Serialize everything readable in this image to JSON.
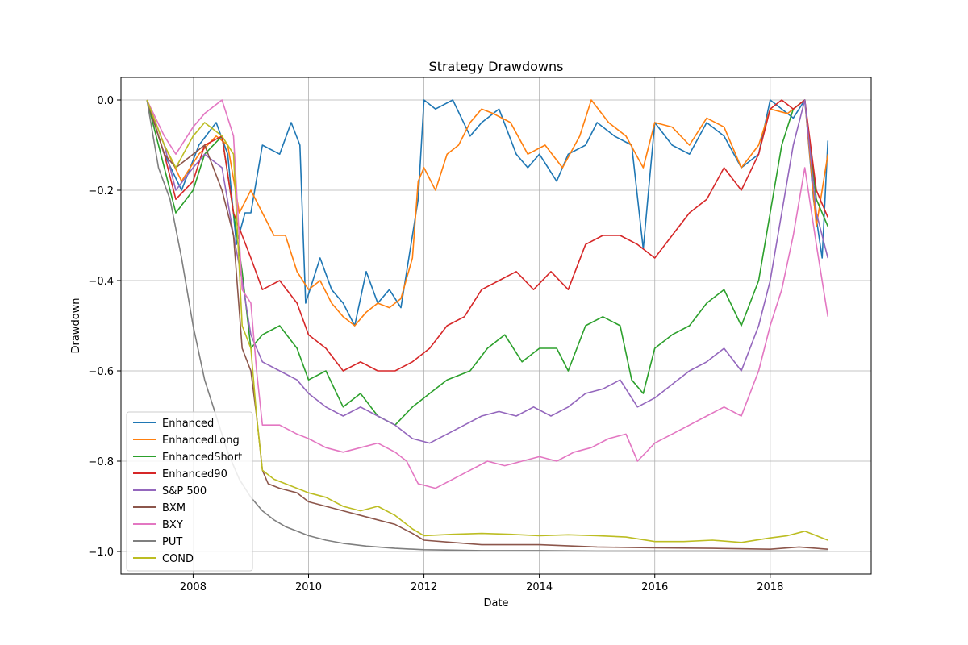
{
  "chart_data": {
    "type": "line",
    "title": "Strategy Drawdowns",
    "xlabel": "Date",
    "ylabel": "Drawdown",
    "xlim": [
      2006.75,
      2019.75
    ],
    "ylim": [
      -1.05,
      0.05
    ],
    "xticks": [
      2008,
      2010,
      2012,
      2014,
      2016,
      2018
    ],
    "xtick_labels": [
      "2008",
      "2010",
      "2012",
      "2014",
      "2016",
      "2018"
    ],
    "yticks": [
      0.0,
      -0.2,
      -0.4,
      -0.6,
      -0.8,
      -1.0
    ],
    "ytick_labels": [
      "0.0",
      "−0.2",
      "−0.4",
      "−0.6",
      "−0.8",
      "−1.0"
    ],
    "grid": true,
    "legend_position": "lower-left",
    "series": [
      {
        "name": "Enhanced",
        "color": "#1f77b4",
        "x": [
          2007.2,
          2007.5,
          2007.8,
          2008.1,
          2008.4,
          2008.6,
          2008.75,
          2008.9,
          2009.0,
          2009.2,
          2009.5,
          2009.7,
          2009.85,
          2009.95,
          2010.2,
          2010.4,
          2010.6,
          2010.8,
          2011.0,
          2011.2,
          2011.4,
          2011.6,
          2011.8,
          2011.9,
          2012.0,
          2012.2,
          2012.5,
          2012.8,
          2013.0,
          2013.3,
          2013.6,
          2013.8,
          2014.0,
          2014.3,
          2014.5,
          2014.8,
          2015.0,
          2015.3,
          2015.6,
          2015.8,
          2016.0,
          2016.3,
          2016.6,
          2016.9,
          2017.2,
          2017.5,
          2017.8,
          2018.0,
          2018.2,
          2018.4,
          2018.6,
          2018.75,
          2018.9,
          2019.0
        ],
        "y": [
          0.0,
          -0.12,
          -0.2,
          -0.1,
          -0.05,
          -0.12,
          -0.32,
          -0.25,
          -0.25,
          -0.1,
          -0.12,
          -0.05,
          -0.1,
          -0.45,
          -0.35,
          -0.42,
          -0.45,
          -0.5,
          -0.38,
          -0.45,
          -0.42,
          -0.46,
          -0.3,
          -0.22,
          0.0,
          -0.02,
          0.0,
          -0.08,
          -0.05,
          -0.02,
          -0.12,
          -0.15,
          -0.12,
          -0.18,
          -0.12,
          -0.1,
          -0.05,
          -0.08,
          -0.1,
          -0.33,
          -0.05,
          -0.1,
          -0.12,
          -0.05,
          -0.08,
          -0.15,
          -0.12,
          0.0,
          -0.02,
          -0.04,
          0.0,
          -0.22,
          -0.35,
          -0.09
        ]
      },
      {
        "name": "EnhancedLong",
        "color": "#ff7f0e",
        "x": [
          2007.2,
          2007.5,
          2007.8,
          2008.1,
          2008.4,
          2008.6,
          2008.8,
          2009.0,
          2009.2,
          2009.4,
          2009.6,
          2009.8,
          2010.0,
          2010.2,
          2010.4,
          2010.6,
          2010.8,
          2011.0,
          2011.2,
          2011.4,
          2011.6,
          2011.8,
          2011.9,
          2012.0,
          2012.2,
          2012.4,
          2012.6,
          2012.8,
          2013.0,
          2013.2,
          2013.5,
          2013.8,
          2014.1,
          2014.4,
          2014.7,
          2014.9,
          2015.2,
          2015.5,
          2015.8,
          2016.0,
          2016.3,
          2016.6,
          2016.9,
          2017.2,
          2017.5,
          2017.8,
          2018.0,
          2018.3,
          2018.6,
          2018.8,
          2019.0
        ],
        "y": [
          0.0,
          -0.1,
          -0.18,
          -0.12,
          -0.08,
          -0.1,
          -0.25,
          -0.2,
          -0.25,
          -0.3,
          -0.3,
          -0.38,
          -0.42,
          -0.4,
          -0.45,
          -0.48,
          -0.5,
          -0.47,
          -0.45,
          -0.46,
          -0.44,
          -0.35,
          -0.18,
          -0.15,
          -0.2,
          -0.12,
          -0.1,
          -0.05,
          -0.02,
          -0.03,
          -0.05,
          -0.12,
          -0.1,
          -0.15,
          -0.08,
          0.0,
          -0.05,
          -0.08,
          -0.15,
          -0.05,
          -0.06,
          -0.1,
          -0.04,
          -0.06,
          -0.15,
          -0.1,
          -0.02,
          -0.03,
          0.0,
          -0.28,
          -0.12
        ]
      },
      {
        "name": "EnhancedShort",
        "color": "#2ca02c",
        "x": [
          2007.2,
          2007.5,
          2007.7,
          2008.0,
          2008.2,
          2008.5,
          2008.7,
          2008.85,
          2009.0,
          2009.2,
          2009.5,
          2009.8,
          2010.0,
          2010.3,
          2010.6,
          2010.9,
          2011.2,
          2011.5,
          2011.8,
          2012.1,
          2012.4,
          2012.8,
          2013.1,
          2013.4,
          2013.7,
          2014.0,
          2014.3,
          2014.5,
          2014.8,
          2015.1,
          2015.4,
          2015.6,
          2015.8,
          2016.0,
          2016.3,
          2016.6,
          2016.9,
          2017.2,
          2017.5,
          2017.8,
          2018.0,
          2018.2,
          2018.4,
          2018.6,
          2018.8,
          2019.0
        ],
        "y": [
          0.0,
          -0.15,
          -0.25,
          -0.2,
          -0.12,
          -0.08,
          -0.25,
          -0.38,
          -0.55,
          -0.52,
          -0.5,
          -0.55,
          -0.62,
          -0.6,
          -0.68,
          -0.65,
          -0.7,
          -0.72,
          -0.68,
          -0.65,
          -0.62,
          -0.6,
          -0.55,
          -0.52,
          -0.58,
          -0.55,
          -0.55,
          -0.6,
          -0.5,
          -0.48,
          -0.5,
          -0.62,
          -0.65,
          -0.55,
          -0.52,
          -0.5,
          -0.45,
          -0.42,
          -0.5,
          -0.4,
          -0.25,
          -0.1,
          -0.02,
          0.0,
          -0.22,
          -0.28
        ]
      },
      {
        "name": "Enhanced90",
        "color": "#d62728",
        "x": [
          2007.2,
          2007.5,
          2007.7,
          2008.0,
          2008.2,
          2008.5,
          2008.7,
          2008.85,
          2009.0,
          2009.2,
          2009.5,
          2009.8,
          2010.0,
          2010.3,
          2010.6,
          2010.9,
          2011.2,
          2011.5,
          2011.8,
          2012.1,
          2012.4,
          2012.7,
          2013.0,
          2013.3,
          2013.6,
          2013.9,
          2014.2,
          2014.5,
          2014.8,
          2015.1,
          2015.4,
          2015.7,
          2016.0,
          2016.3,
          2016.6,
          2016.9,
          2017.2,
          2017.5,
          2017.8,
          2018.0,
          2018.2,
          2018.4,
          2018.6,
          2018.8,
          2019.0
        ],
        "y": [
          0.0,
          -0.12,
          -0.22,
          -0.18,
          -0.1,
          -0.08,
          -0.25,
          -0.3,
          -0.35,
          -0.42,
          -0.4,
          -0.45,
          -0.52,
          -0.55,
          -0.6,
          -0.58,
          -0.6,
          -0.6,
          -0.58,
          -0.55,
          -0.5,
          -0.48,
          -0.42,
          -0.4,
          -0.38,
          -0.42,
          -0.38,
          -0.42,
          -0.32,
          -0.3,
          -0.3,
          -0.32,
          -0.35,
          -0.3,
          -0.25,
          -0.22,
          -0.15,
          -0.2,
          -0.12,
          -0.02,
          0.0,
          -0.02,
          0.0,
          -0.2,
          -0.26
        ]
      },
      {
        "name": "S&P 500",
        "color": "#9467bd",
        "x": [
          2007.2,
          2007.5,
          2007.7,
          2008.0,
          2008.2,
          2008.5,
          2008.7,
          2008.85,
          2009.0,
          2009.2,
          2009.5,
          2009.8,
          2010.0,
          2010.3,
          2010.6,
          2010.9,
          2011.2,
          2011.5,
          2011.8,
          2012.1,
          2012.4,
          2012.7,
          2013.0,
          2013.3,
          2013.6,
          2013.9,
          2014.2,
          2014.5,
          2014.8,
          2015.1,
          2015.4,
          2015.7,
          2016.0,
          2016.3,
          2016.6,
          2016.9,
          2017.2,
          2017.5,
          2017.8,
          2018.0,
          2018.2,
          2018.4,
          2018.6,
          2018.8,
          2019.0
        ],
        "y": [
          0.0,
          -0.1,
          -0.2,
          -0.15,
          -0.12,
          -0.15,
          -0.3,
          -0.4,
          -0.52,
          -0.58,
          -0.6,
          -0.62,
          -0.65,
          -0.68,
          -0.7,
          -0.68,
          -0.7,
          -0.72,
          -0.75,
          -0.76,
          -0.74,
          -0.72,
          -0.7,
          -0.69,
          -0.7,
          -0.68,
          -0.7,
          -0.68,
          -0.65,
          -0.64,
          -0.62,
          -0.68,
          -0.66,
          -0.63,
          -0.6,
          -0.58,
          -0.55,
          -0.6,
          -0.5,
          -0.4,
          -0.25,
          -0.1,
          0.0,
          -0.25,
          -0.35
        ]
      },
      {
        "name": "BXM",
        "color": "#8c564b",
        "x": [
          2007.2,
          2007.5,
          2007.7,
          2008.0,
          2008.2,
          2008.5,
          2008.7,
          2008.85,
          2009.0,
          2009.1,
          2009.2,
          2009.3,
          2009.5,
          2009.8,
          2010.0,
          2010.3,
          2010.6,
          2010.9,
          2011.2,
          2011.5,
          2011.8,
          2012.0,
          2012.5,
          2013.0,
          2014.0,
          2015.0,
          2016.0,
          2017.0,
          2018.0,
          2018.5,
          2019.0
        ],
        "y": [
          0.0,
          -0.12,
          -0.15,
          -0.12,
          -0.1,
          -0.2,
          -0.3,
          -0.55,
          -0.6,
          -0.7,
          -0.82,
          -0.85,
          -0.86,
          -0.87,
          -0.89,
          -0.9,
          -0.91,
          -0.92,
          -0.93,
          -0.94,
          -0.96,
          -0.975,
          -0.98,
          -0.985,
          -0.985,
          -0.99,
          -0.992,
          -0.993,
          -0.995,
          -0.99,
          -0.995
        ]
      },
      {
        "name": "BXY",
        "color": "#e377c2",
        "x": [
          2007.2,
          2007.5,
          2007.7,
          2008.0,
          2008.2,
          2008.5,
          2008.7,
          2008.85,
          2009.0,
          2009.1,
          2009.2,
          2009.5,
          2009.8,
          2010.0,
          2010.3,
          2010.6,
          2010.9,
          2011.2,
          2011.5,
          2011.7,
          2011.9,
          2012.2,
          2012.5,
          2012.8,
          2013.1,
          2013.4,
          2013.7,
          2014.0,
          2014.3,
          2014.6,
          2014.9,
          2015.2,
          2015.5,
          2015.7,
          2016.0,
          2016.3,
          2016.6,
          2016.9,
          2017.2,
          2017.5,
          2017.8,
          2018.0,
          2018.2,
          2018.4,
          2018.6,
          2018.8,
          2019.0
        ],
        "y": [
          0.0,
          -0.08,
          -0.12,
          -0.06,
          -0.03,
          0.0,
          -0.08,
          -0.42,
          -0.45,
          -0.6,
          -0.72,
          -0.72,
          -0.74,
          -0.75,
          -0.77,
          -0.78,
          -0.77,
          -0.76,
          -0.78,
          -0.8,
          -0.85,
          -0.86,
          -0.84,
          -0.82,
          -0.8,
          -0.81,
          -0.8,
          -0.79,
          -0.8,
          -0.78,
          -0.77,
          -0.75,
          -0.74,
          -0.8,
          -0.76,
          -0.74,
          -0.72,
          -0.7,
          -0.68,
          -0.7,
          -0.6,
          -0.5,
          -0.42,
          -0.3,
          -0.15,
          -0.32,
          -0.48
        ]
      },
      {
        "name": "PUT",
        "color": "#7f7f7f",
        "x": [
          2007.2,
          2007.4,
          2007.6,
          2007.8,
          2008.0,
          2008.2,
          2008.4,
          2008.6,
          2008.8,
          2009.0,
          2009.2,
          2009.4,
          2009.6,
          2009.8,
          2010.0,
          2010.3,
          2010.6,
          2011.0,
          2011.5,
          2012.0,
          2012.5,
          2013.0,
          2014.0,
          2015.0,
          2016.0,
          2017.0,
          2018.0,
          2019.0
        ],
        "y": [
          0.0,
          -0.15,
          -0.22,
          -0.35,
          -0.5,
          -0.62,
          -0.7,
          -0.78,
          -0.84,
          -0.88,
          -0.91,
          -0.93,
          -0.945,
          -0.955,
          -0.965,
          -0.975,
          -0.982,
          -0.988,
          -0.993,
          -0.996,
          -0.997,
          -0.998,
          -0.998,
          -0.999,
          -0.999,
          -0.999,
          -0.999,
          -0.999
        ]
      },
      {
        "name": "COND",
        "color": "#bcbd22",
        "x": [
          2007.2,
          2007.5,
          2007.7,
          2008.0,
          2008.2,
          2008.5,
          2008.7,
          2008.85,
          2009.0,
          2009.1,
          2009.2,
          2009.4,
          2009.6,
          2009.8,
          2010.0,
          2010.3,
          2010.6,
          2010.9,
          2011.2,
          2011.5,
          2011.8,
          2012.0,
          2012.5,
          2013.0,
          2013.5,
          2014.0,
          2014.5,
          2015.0,
          2015.5,
          2016.0,
          2016.5,
          2017.0,
          2017.5,
          2018.0,
          2018.3,
          2018.6,
          2018.8,
          2019.0
        ],
        "y": [
          0.0,
          -0.1,
          -0.15,
          -0.08,
          -0.05,
          -0.08,
          -0.12,
          -0.5,
          -0.55,
          -0.7,
          -0.82,
          -0.84,
          -0.85,
          -0.86,
          -0.87,
          -0.88,
          -0.9,
          -0.91,
          -0.9,
          -0.92,
          -0.95,
          -0.965,
          -0.962,
          -0.96,
          -0.962,
          -0.965,
          -0.963,
          -0.965,
          -0.968,
          -0.978,
          -0.978,
          -0.975,
          -0.98,
          -0.97,
          -0.965,
          -0.955,
          -0.965,
          -0.975
        ]
      }
    ]
  }
}
